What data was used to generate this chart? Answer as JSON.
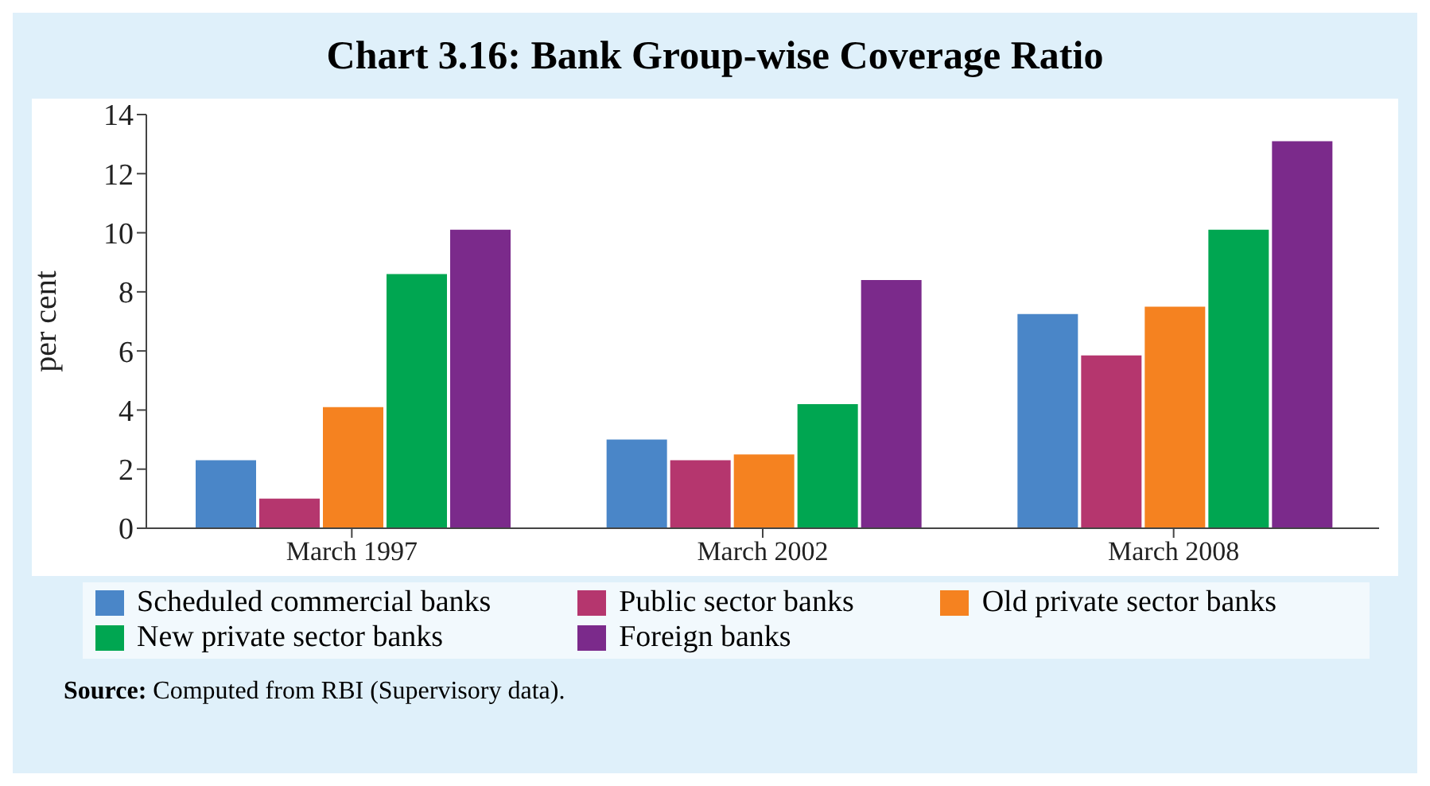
{
  "chart_data": {
    "type": "bar",
    "title": "Chart 3.16: Bank Group-wise Coverage Ratio",
    "ylabel": "per cent",
    "categories": [
      "March 1997",
      "March 2002",
      "March 2008"
    ],
    "series": [
      {
        "name": "Scheduled commercial banks",
        "color": "#4a86c8",
        "values": [
          2.3,
          3.0,
          7.25
        ]
      },
      {
        "name": "Public sector banks",
        "color": "#b5366e",
        "values": [
          1.0,
          2.3,
          5.85
        ]
      },
      {
        "name": "Old private sector banks",
        "color": "#f58220",
        "values": [
          4.1,
          2.5,
          7.5
        ]
      },
      {
        "name": "New private sector banks",
        "color": "#00a651",
        "values": [
          8.6,
          4.2,
          10.1
        ]
      },
      {
        "name": "Foreign banks",
        "color": "#7b2a8b",
        "values": [
          10.1,
          8.4,
          13.1
        ]
      }
    ],
    "ylim": [
      0,
      14
    ],
    "yticks": [
      0,
      2,
      4,
      6,
      8,
      10,
      12,
      14
    ],
    "grid": false,
    "legend": "bottom",
    "annotations": [
      "Source: Computed from RBI (Supervisory data)."
    ]
  }
}
